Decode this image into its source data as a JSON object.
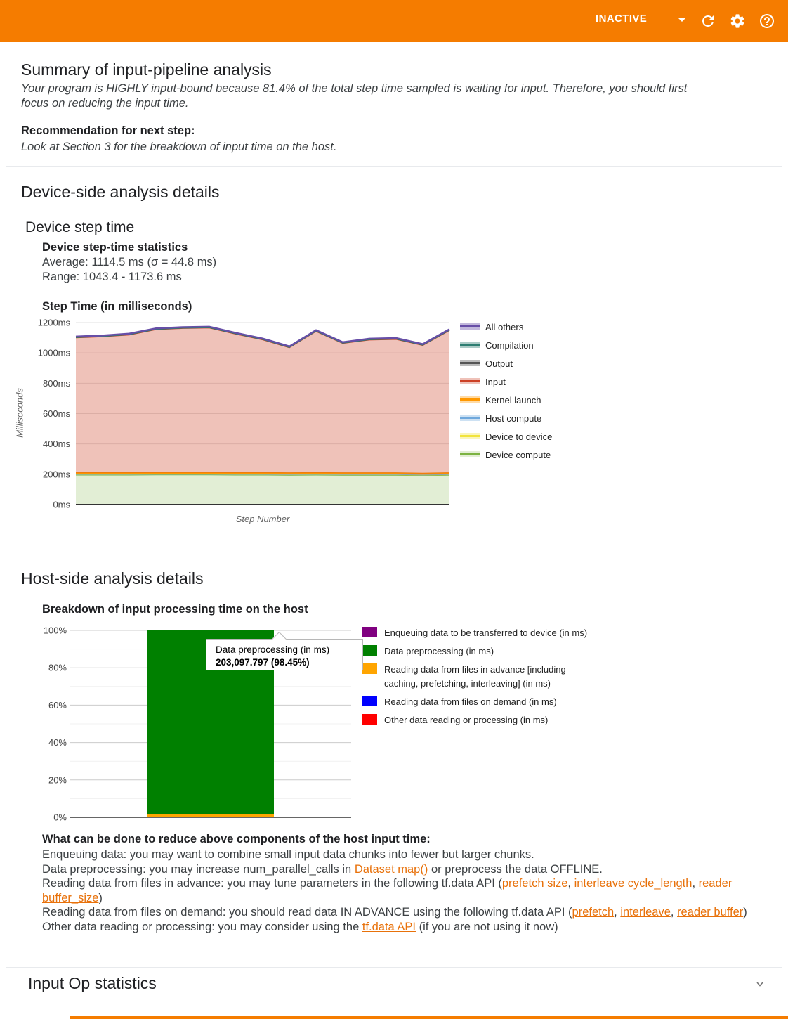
{
  "header": {
    "status": "INACTIVE"
  },
  "summary": {
    "title": "Summary of input-pipeline analysis",
    "body": "Your program is HIGHLY input-bound because 81.4% of the total step time sampled is waiting for input. Therefore, you should first focus on reducing the input time.",
    "recommendation_label": "Recommendation for next step:",
    "recommendation": "Look at Section 3 for the breakdown of input time on the host."
  },
  "device_side": {
    "title": "Device-side analysis details",
    "section_title": "Device step time",
    "stats_title": "Device step-time statistics",
    "stats_average": "Average: 1114.5 ms (σ = 44.8 ms)",
    "stats_range": "Range: 1043.4 - 1173.6 ms"
  },
  "host_side": {
    "title": "Host-side analysis details",
    "advice_heading": "What can be done to reduce above components of the host input time:",
    "advice_lines": [
      [
        {
          "t": "Enqueuing data: you may want to combine small input data chunks into fewer but larger chunks."
        }
      ],
      [
        {
          "t": "Data preprocessing: you may increase num_parallel_calls in "
        },
        {
          "t": "Dataset map()",
          "link": true
        },
        {
          "t": " or preprocess the data OFFLINE."
        }
      ],
      [
        {
          "t": "Reading data from files in advance: you may tune parameters in the following tf.data API ("
        },
        {
          "t": "prefetch size",
          "link": true
        },
        {
          "t": ", "
        },
        {
          "t": "interleave cycle_length",
          "link": true
        },
        {
          "t": ", "
        },
        {
          "t": "reader buffer_size",
          "link": true
        },
        {
          "t": ")"
        }
      ],
      [
        {
          "t": "Reading data from files on demand: you should read data IN ADVANCE using the following tf.data API ("
        },
        {
          "t": "prefetch",
          "link": true
        },
        {
          "t": ", "
        },
        {
          "t": "interleave",
          "link": true
        },
        {
          "t": ", "
        },
        {
          "t": "reader buffer",
          "link": true
        },
        {
          "t": ")"
        }
      ],
      [
        {
          "t": "Other data reading or processing: you may consider using the "
        },
        {
          "t": "tf.data API",
          "link": true
        },
        {
          "t": " (if you are not using it now)"
        }
      ]
    ]
  },
  "input_op": {
    "title": "Input Op statistics"
  },
  "chart_data": [
    {
      "type": "area",
      "title": "Step Time (in milliseconds)",
      "xlabel": "Step Number",
      "ylabel": "Milliseconds",
      "ylim": [
        0,
        1200
      ],
      "yticks": [
        "0ms",
        "200ms",
        "400ms",
        "600ms",
        "800ms",
        "1000ms",
        "1200ms"
      ],
      "num_steps": 15,
      "stacked": true,
      "grid": true,
      "legend_position": "right",
      "series": [
        {
          "key": "device-compute",
          "name": "Device compute",
          "line": "#7cb342",
          "fill": "rgba(124,179,66,0.22)",
          "width": 2,
          "values": [
            197,
            197,
            197,
            198,
            198,
            198,
            197,
            197,
            196,
            197,
            196,
            196,
            196,
            193,
            196
          ]
        },
        {
          "key": "device-to-device",
          "name": "Device to device",
          "line": "#f1e33b",
          "fill": "rgba(241,227,59,0.35)",
          "width": 1,
          "values": [
            1,
            1,
            1,
            1,
            1,
            1,
            1,
            1,
            1,
            1,
            1,
            1,
            1,
            1,
            1
          ]
        },
        {
          "key": "host-compute",
          "name": "Host compute",
          "line": "#6fa8dc",
          "fill": "rgba(111,168,220,0.35)",
          "width": 1,
          "values": [
            1,
            1,
            1,
            1,
            1,
            1,
            1,
            1,
            1,
            1,
            1,
            1,
            1,
            1,
            1
          ]
        },
        {
          "key": "kernel-launch",
          "name": "Kernel launch",
          "line": "#ff9800",
          "fill": "rgba(255,152,0,0.35)",
          "width": 2.5,
          "values": [
            9,
            9,
            9,
            9,
            9,
            9,
            9,
            9,
            9,
            9,
            9,
            9,
            9,
            9,
            9
          ]
        },
        {
          "key": "input",
          "name": "Input",
          "line": "#cc4125",
          "fill": "rgba(204,65,37,0.32)",
          "width": 1,
          "values": [
            891,
            898,
            910,
            944,
            952,
            955,
            915,
            878,
            827,
            933,
            855,
            878,
            882,
            845,
            940
          ]
        },
        {
          "key": "output",
          "name": "Output",
          "line": "#555555",
          "fill": "rgba(85,85,85,0.4)",
          "width": 1,
          "values": [
            2,
            2,
            2,
            2,
            2,
            2,
            2,
            2,
            2,
            2,
            2,
            2,
            2,
            2,
            2
          ]
        },
        {
          "key": "compilation",
          "name": "Compilation",
          "line": "#2d7d71",
          "fill": "rgba(45,125,113,0.4)",
          "width": 2,
          "values": [
            3,
            3,
            3,
            3,
            3,
            3,
            3,
            3,
            3,
            3,
            3,
            3,
            3,
            3,
            3
          ]
        },
        {
          "key": "all-others",
          "name": "All others",
          "line": "#674ea7",
          "fill": "rgba(103,78,167,0.4)",
          "width": 2.5,
          "values": [
            4,
            4,
            4,
            4,
            4,
            4,
            4,
            4,
            4,
            4,
            4,
            4,
            4,
            4,
            4
          ]
        }
      ]
    },
    {
      "type": "bar",
      "title": "Breakdown of input processing time on the host",
      "ylim": [
        0,
        100
      ],
      "yticks": [
        "0%",
        "20%",
        "40%",
        "60%",
        "80%",
        "100%"
      ],
      "grid": true,
      "legend_position": "right",
      "series": [
        {
          "name": "Enqueuing data to be transferred to device (in ms)",
          "color": "#800080",
          "pct": 0
        },
        {
          "name": "Data preprocessing (in ms)",
          "color": "#008000",
          "pct": 98.45,
          "value_ms": 203097.797
        },
        {
          "name": "Reading data from files in advance [including caching, prefetching, interleaving] (in ms)",
          "color": "#ffa500",
          "pct": 1.55
        },
        {
          "name": "Reading data from files on demand (in ms)",
          "color": "#0000ff",
          "pct": 0
        },
        {
          "name": "Other data reading or processing (in ms)",
          "color": "#ff0000",
          "pct": 0
        }
      ],
      "tooltip": {
        "title": "Data preprocessing (in ms)",
        "value": "203,097.797 (98.45%)"
      }
    }
  ]
}
